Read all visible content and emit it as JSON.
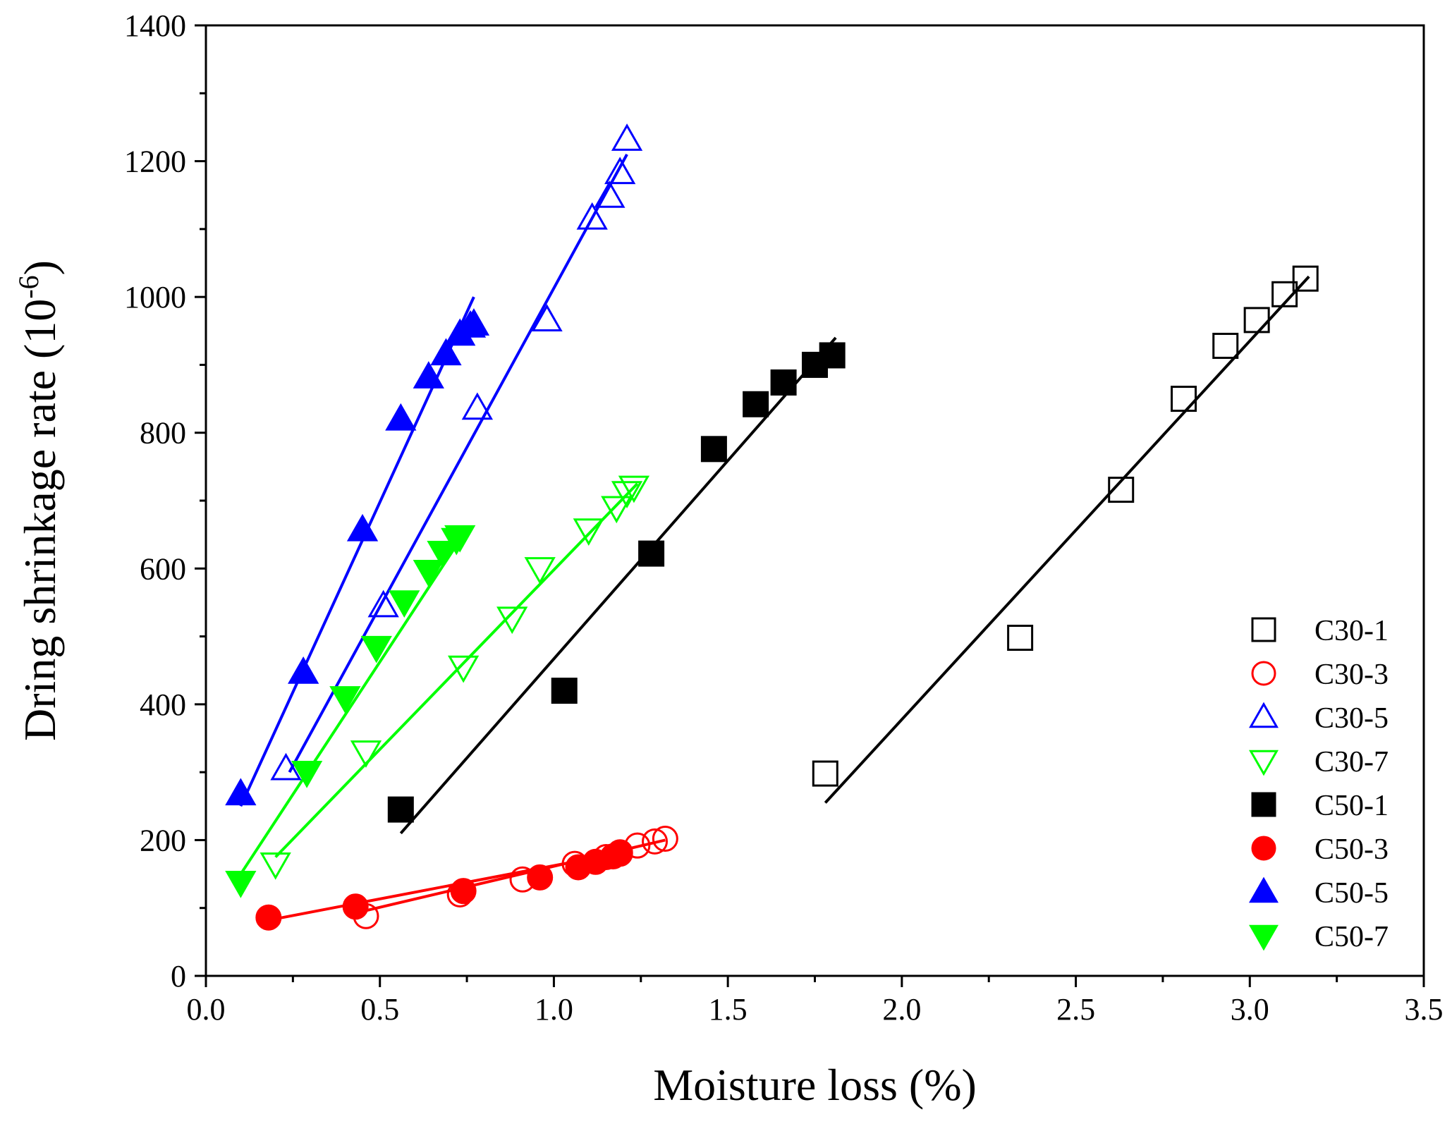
{
  "chart_data": {
    "type": "scatter",
    "title": "",
    "xlabel": "Moisture loss (%)",
    "ylabel_main": "Dring shrinkage rate (10",
    "ylabel_sup": "-6",
    "ylabel_close": ")",
    "xlim": [
      0.0,
      3.5
    ],
    "ylim": [
      0,
      1400
    ],
    "xticks": [
      0.0,
      0.5,
      1.0,
      1.5,
      2.0,
      2.5,
      3.0,
      3.5
    ],
    "xtick_labels": [
      "0.0",
      "0.5",
      "1.0",
      "1.5",
      "2.0",
      "2.5",
      "3.0",
      "3.5"
    ],
    "yticks": [
      0,
      200,
      400,
      600,
      800,
      1000,
      1200,
      1400
    ],
    "ytick_labels": [
      "0",
      "200",
      "400",
      "600",
      "800",
      "1000",
      "1200",
      "1400"
    ],
    "grid": false,
    "legend_position": "bottom-right",
    "series": [
      {
        "name": "C30-1",
        "marker": "square",
        "filled": false,
        "color": "#000000",
        "x": [
          1.78,
          2.34,
          2.63,
          2.81,
          2.93,
          3.02,
          3.1,
          3.16
        ],
        "y": [
          298,
          498,
          716,
          850,
          928,
          966,
          1004,
          1027
        ],
        "fit": {
          "x": [
            1.78,
            3.17
          ],
          "y": [
            255,
            1030
          ]
        }
      },
      {
        "name": "C30-3",
        "marker": "circle",
        "filled": false,
        "color": "#ff0000",
        "x": [
          0.46,
          0.73,
          0.91,
          1.06,
          1.15,
          1.19,
          1.24,
          1.29,
          1.32
        ],
        "y": [
          88,
          120,
          142,
          165,
          175,
          182,
          192,
          198,
          202
        ],
        "fit": {
          "x": [
            0.45,
            1.32
          ],
          "y": [
            95,
            200
          ]
        }
      },
      {
        "name": "C30-5",
        "marker": "triangle-up",
        "filled": false,
        "color": "#0000ff",
        "x": [
          0.23,
          0.51,
          0.78,
          0.98,
          1.11,
          1.16,
          1.19,
          1.21
        ],
        "y": [
          305,
          545,
          836,
          966,
          1116,
          1148,
          1183,
          1232
        ],
        "fit": {
          "x": [
            0.24,
            1.21
          ],
          "y": [
            300,
            1210
          ]
        }
      },
      {
        "name": "C30-7",
        "marker": "triangle-down",
        "filled": false,
        "color": "#00ff00",
        "x": [
          0.2,
          0.46,
          0.74,
          0.88,
          0.96,
          1.1,
          1.18,
          1.21,
          1.23
        ],
        "y": [
          165,
          330,
          455,
          527,
          600,
          657,
          690,
          712,
          720
        ],
        "fit": {
          "x": [
            0.2,
            1.24
          ],
          "y": [
            175,
            725
          ]
        }
      },
      {
        "name": "C50-1",
        "marker": "square",
        "filled": true,
        "color": "#000000",
        "x": [
          0.56,
          1.03,
          1.28,
          1.46,
          1.58,
          1.66,
          1.75,
          1.8
        ],
        "y": [
          245,
          420,
          622,
          776,
          842,
          874,
          900,
          914
        ],
        "fit": {
          "x": [
            0.56,
            1.81
          ],
          "y": [
            210,
            940
          ]
        }
      },
      {
        "name": "C50-3",
        "marker": "circle",
        "filled": true,
        "color": "#ff0000",
        "x": [
          0.18,
          0.43,
          0.74,
          0.96,
          1.07,
          1.12,
          1.17,
          1.19
        ],
        "y": [
          86,
          102,
          125,
          145,
          160,
          168,
          176,
          180
        ],
        "fit": {
          "x": [
            0.18,
            1.2
          ],
          "y": [
            82,
            182
          ]
        }
      },
      {
        "name": "C50-5",
        "marker": "triangle-up",
        "filled": true,
        "color": "#0000ff",
        "x": [
          0.1,
          0.28,
          0.45,
          0.56,
          0.64,
          0.69,
          0.73,
          0.76,
          0.77
        ],
        "y": [
          268,
          447,
          657,
          820,
          882,
          916,
          945,
          957,
          960
        ],
        "fit": {
          "x": [
            0.1,
            0.77
          ],
          "y": [
            250,
            1000
          ]
        }
      },
      {
        "name": "C50-7",
        "marker": "triangle-down",
        "filled": true,
        "color": "#00ff00",
        "x": [
          0.1,
          0.29,
          0.4,
          0.49,
          0.57,
          0.64,
          0.68,
          0.72,
          0.73
        ],
        "y": [
          138,
          300,
          410,
          484,
          551,
          596,
          624,
          643,
          647
        ],
        "fit": {
          "x": [
            0.1,
            0.74
          ],
          "y": [
            150,
            650
          ]
        }
      }
    ]
  }
}
